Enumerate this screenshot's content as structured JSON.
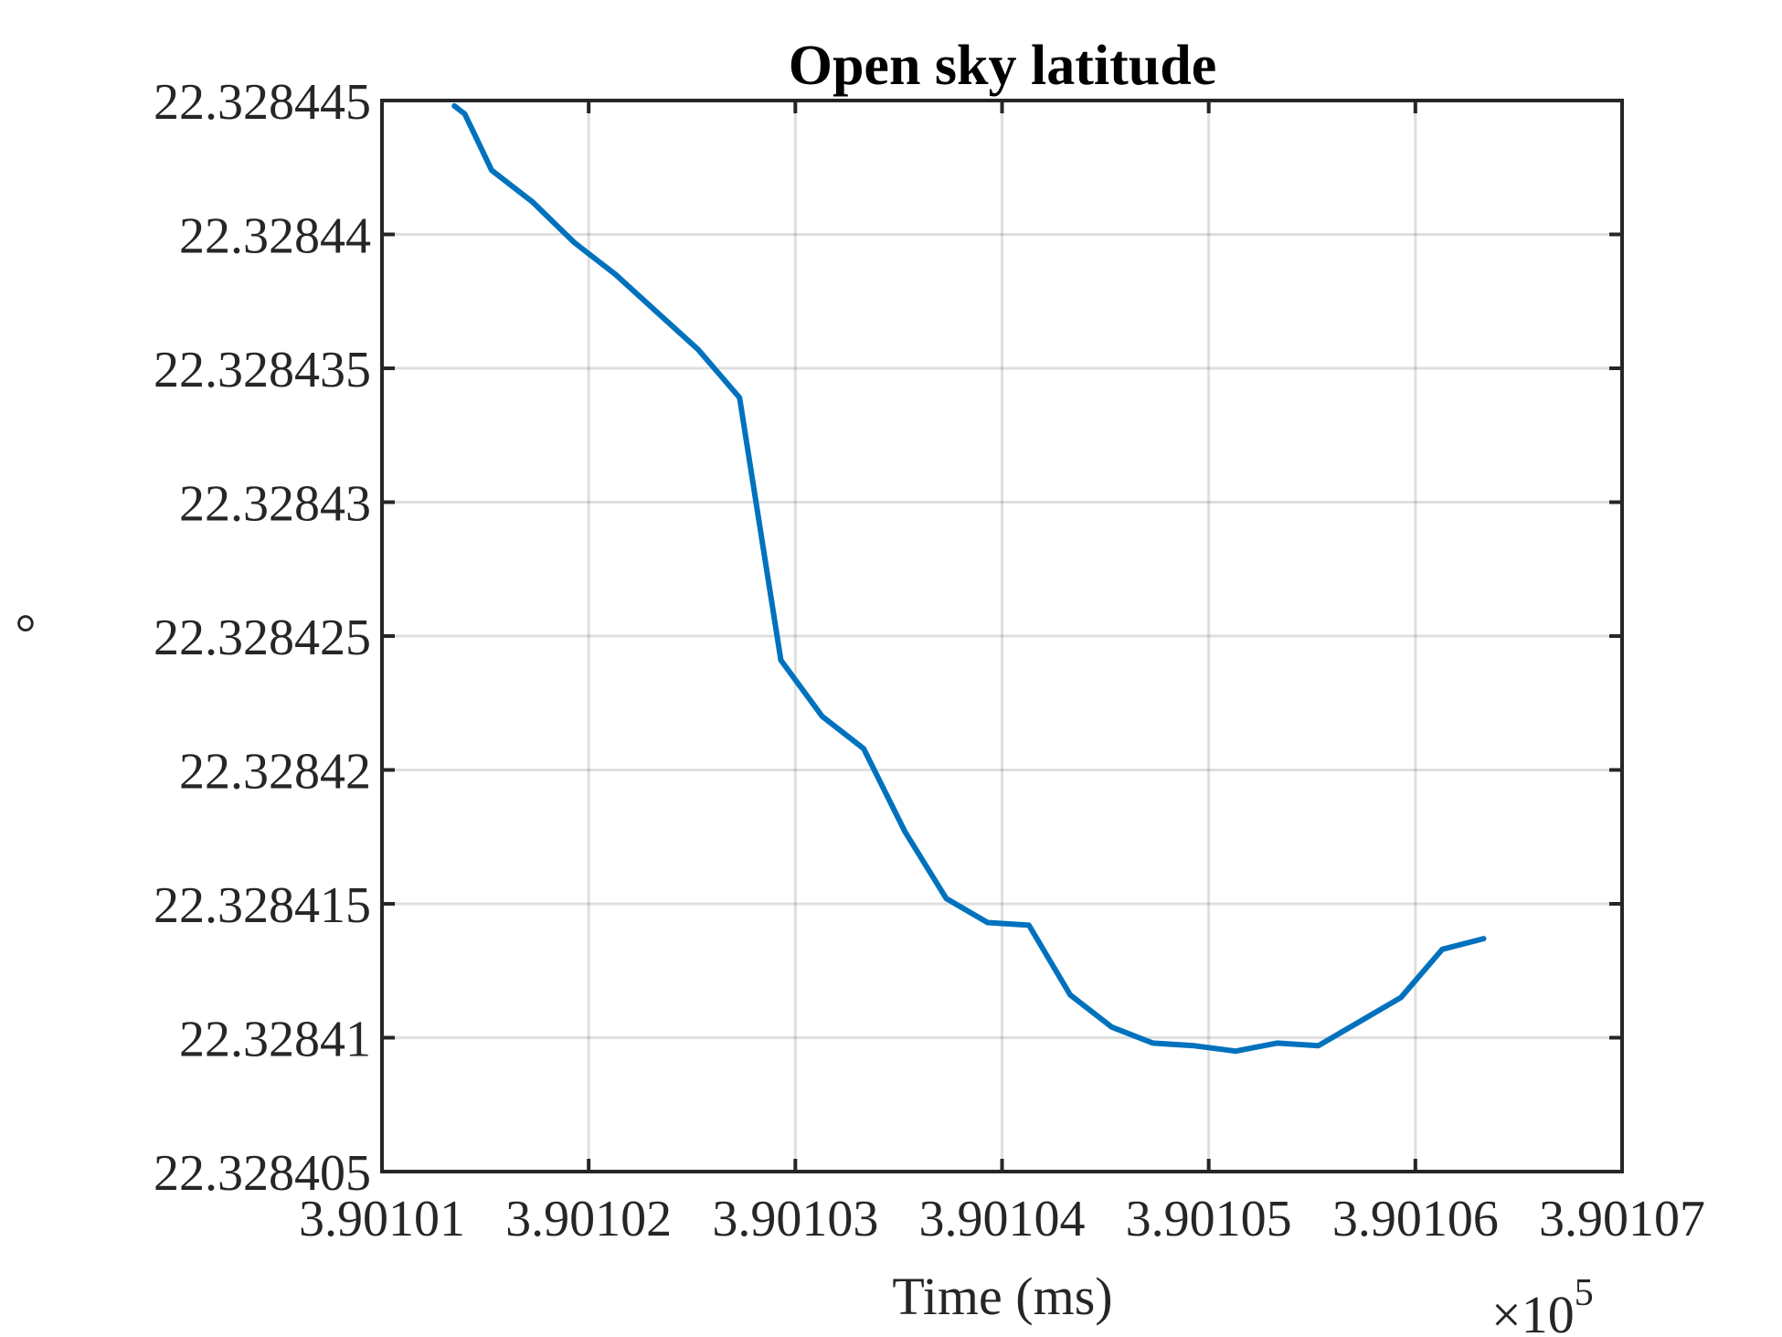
{
  "chart_data": {
    "type": "line",
    "title": "Open sky latitude",
    "xlabel": "Time (ms)",
    "ylabel": "°",
    "x_exponent_label": "×10",
    "x_exponent_power": "5",
    "xlim": [
      3.90101,
      3.90107
    ],
    "ylim": [
      22.328405,
      22.328445
    ],
    "x_ticks": [
      3.90101,
      3.90102,
      3.90103,
      3.90104,
      3.90105,
      3.90106,
      3.90107
    ],
    "x_tick_labels": [
      "3.90101",
      "3.90102",
      "3.90103",
      "3.90104",
      "3.90105",
      "3.90106",
      "3.90107"
    ],
    "y_ticks": [
      22.328405,
      22.32841,
      22.328415,
      22.32842,
      22.328425,
      22.32843,
      22.328435,
      22.32844,
      22.328445
    ],
    "y_tick_labels": [
      "22.328405",
      "22.32841",
      "22.328415",
      "22.32842",
      "22.328425",
      "22.32843",
      "22.328435",
      "22.32844",
      "22.328445"
    ],
    "grid": true,
    "color": "#0072BD",
    "series": [
      {
        "x": [
          3.9010135,
          3.901014,
          3.9010145,
          3.9010153,
          3.9010173,
          3.9010193,
          3.9010213,
          3.9010233,
          3.9010253,
          3.9010273,
          3.9010293,
          3.9010313,
          3.9010333,
          3.9010353,
          3.9010373,
          3.9010393,
          3.9010413,
          3.9010433,
          3.9010453,
          3.9010473,
          3.9010493,
          3.9010513,
          3.9010533,
          3.9010553,
          3.9010573,
          3.9010593,
          3.9010613,
          3.9010633
        ],
        "y": [
          22.3284448,
          22.3284445,
          22.3284437,
          22.3284424,
          22.3284412,
          22.3284397,
          22.3284385,
          22.3284371,
          22.3284357,
          22.3284339,
          22.3284241,
          22.328422,
          22.3284208,
          22.3284177,
          22.3284152,
          22.3284143,
          22.3284142,
          22.3284116,
          22.3284104,
          22.3284098,
          22.3284097,
          22.3284095,
          22.3284098,
          22.3284097,
          22.3284106,
          22.3284115,
          22.3284133,
          22.3284137
        ]
      }
    ]
  }
}
